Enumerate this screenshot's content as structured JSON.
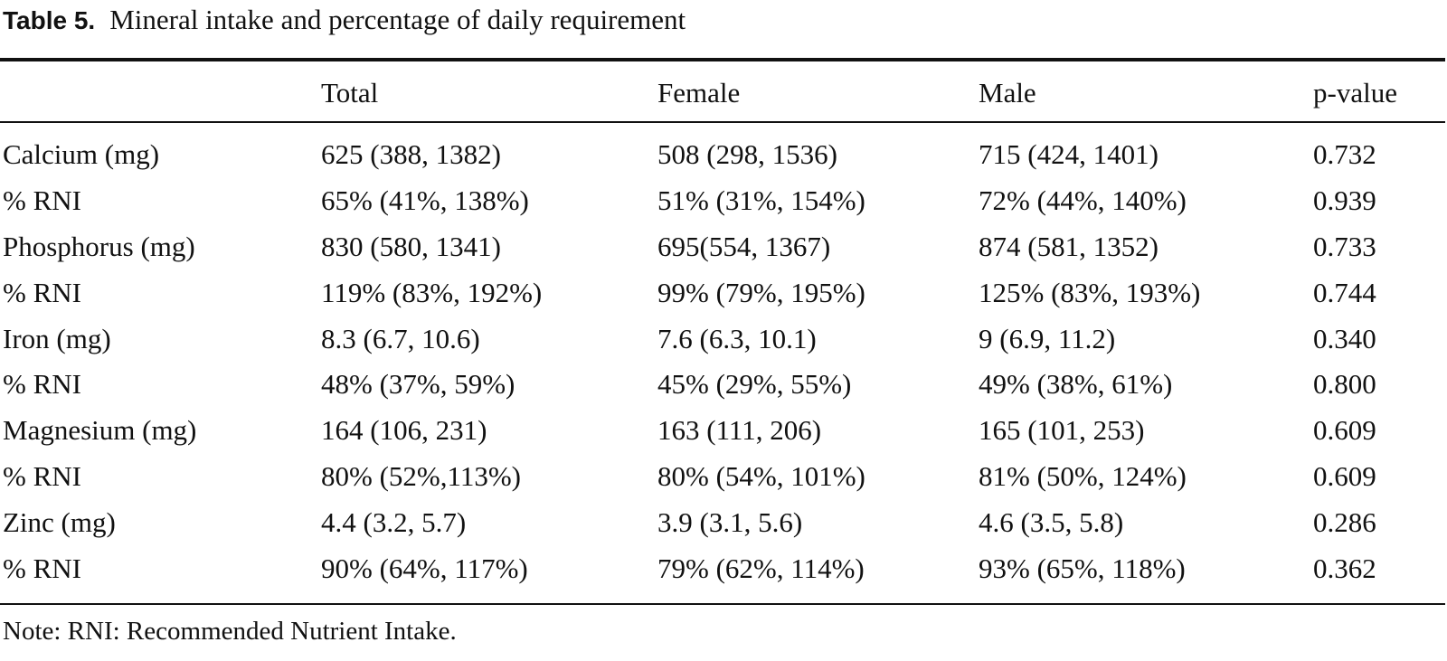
{
  "caption": {
    "label": "Table 5.",
    "title": "Mineral intake and percentage of daily requirement"
  },
  "table": {
    "columns": [
      "",
      "Total",
      "Female",
      "Male",
      "p-value"
    ],
    "rows": [
      {
        "label": "Calcium (mg)",
        "total": "625 (388, 1382)",
        "female": "508 (298, 1536)",
        "male": "715 (424, 1401)",
        "p": "0.732"
      },
      {
        "label": "% RNI",
        "total": "65% (41%, 138%)",
        "female": "51% (31%, 154%)",
        "male": "72% (44%, 140%)",
        "p": "0.939"
      },
      {
        "label": "Phosphorus (mg)",
        "total": "830 (580, 1341)",
        "female": "695(554, 1367)",
        "male": "874 (581, 1352)",
        "p": "0.733"
      },
      {
        "label": "% RNI",
        "total": "119% (83%, 192%)",
        "female": "99% (79%, 195%)",
        "male": "125% (83%, 193%)",
        "p": "0.744"
      },
      {
        "label": "Iron (mg)",
        "total": "8.3 (6.7, 10.6)",
        "female": "7.6 (6.3, 10.1)",
        "male": "9 (6.9, 11.2)",
        "p": "0.340"
      },
      {
        "label": "% RNI",
        "total": "48% (37%, 59%)",
        "female": "45% (29%, 55%)",
        "male": "49% (38%, 61%)",
        "p": "0.800"
      },
      {
        "label": "Magnesium (mg)",
        "total": "164 (106, 231)",
        "female": "163 (111, 206)",
        "male": "165 (101, 253)",
        "p": "0.609"
      },
      {
        "label": "% RNI",
        "total": "80% (52%,113%)",
        "female": "80% (54%, 101%)",
        "male": "81% (50%, 124%)",
        "p": "0.609"
      },
      {
        "label": "Zinc (mg)",
        "total": "4.4 (3.2, 5.7)",
        "female": "3.9 (3.1, 5.6)",
        "male": "4.6 (3.5, 5.8)",
        "p": "0.286"
      },
      {
        "label": "% RNI",
        "total": "90% (64%, 117%)",
        "female": "79% (62%, 114%)",
        "male": "93% (65%, 118%)",
        "p": "0.362"
      }
    ]
  },
  "note": "Note: RNI: Recommended Nutrient Intake."
}
